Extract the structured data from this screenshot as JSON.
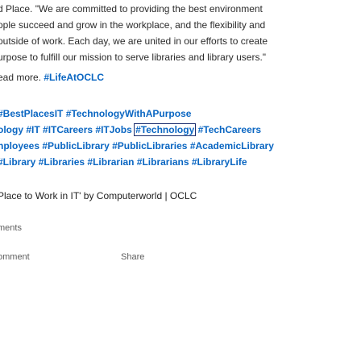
{
  "post": {
    "quote_lines": [
      "d Place. \"We are committed to providing the best environment",
      "ople succeed and grow in the workplace, and the flexibility and",
      "outside of work. Each day, we are united in our efforts to create",
      "urpose to fulfill our mission to serve libraries and library users.\""
    ],
    "read_more_prefix": "ead more.",
    "read_more_tag": "#LifeAtOCLC"
  },
  "hashtags": {
    "line1": [
      "#BestPlacesIT",
      "#TechnologyWithAPurpose"
    ],
    "line2": [
      "ology",
      "#IT",
      "#ITCareers",
      "#ITJobs",
      "#Technology",
      "#TechCareers"
    ],
    "line3": [
      "nployees",
      "#PublicLibrary",
      "#PublicLibraries",
      "#AcademicLibrary"
    ],
    "line4": [
      "#Library",
      "#Libraries",
      "#Librarian",
      "#Librarians",
      "#LibraryLife"
    ]
  },
  "article_link": "Place to Work in IT' by Computerworld | OCLC",
  "comments_label": "ments",
  "actions": {
    "comment_label": "omment",
    "share_label": "Share"
  },
  "colors": {
    "link": "#0a66c2",
    "text": "#2b2b2b",
    "focus_outline": "#1a2d6e"
  }
}
